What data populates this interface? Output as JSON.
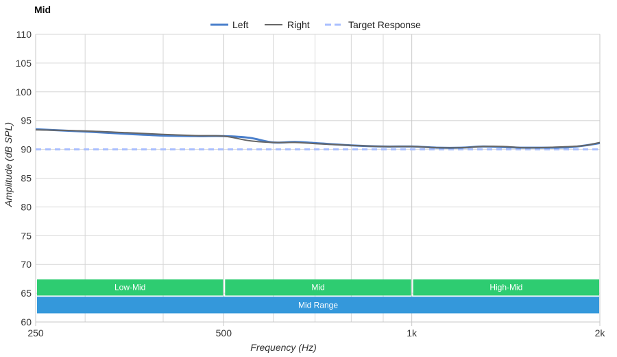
{
  "chart_data": {
    "type": "line",
    "title": "Mid",
    "xlabel": "Frequency (Hz)",
    "ylabel": "Amplitude (dB SPL)",
    "x_scale": "log",
    "xlim": [
      250,
      2000
    ],
    "ylim": [
      60,
      110
    ],
    "grid": true,
    "legend_position": "top-center",
    "x_ticks": [
      {
        "value": 250,
        "label": "250"
      },
      {
        "value": 500,
        "label": "500"
      },
      {
        "value": 1000,
        "label": "1k"
      },
      {
        "value": 2000,
        "label": "2k"
      }
    ],
    "x_minor_gridlines": [
      300,
      400,
      600,
      700,
      800,
      900
    ],
    "y_ticks": [
      60,
      65,
      70,
      75,
      80,
      85,
      90,
      95,
      100,
      105,
      110
    ],
    "series": [
      {
        "name": "Left",
        "color": "#4a7fcb",
        "style": "solid",
        "x": [
          250,
          300,
          350,
          400,
          450,
          500,
          550,
          600,
          650,
          700,
          800,
          900,
          1000,
          1100,
          1200,
          1300,
          1400,
          1500,
          1600,
          1700,
          1800,
          1900,
          2000
        ],
        "y": [
          93.5,
          93.1,
          92.7,
          92.4,
          92.3,
          92.3,
          92.0,
          91.2,
          91.3,
          91.1,
          90.7,
          90.5,
          90.5,
          90.3,
          90.3,
          90.5,
          90.4,
          90.3,
          90.3,
          90.3,
          90.4,
          90.7,
          91.1
        ]
      },
      {
        "name": "Right",
        "color": "#666666",
        "style": "solid",
        "x": [
          250,
          300,
          350,
          400,
          450,
          500,
          550,
          600,
          650,
          700,
          800,
          900,
          1000,
          1100,
          1200,
          1300,
          1400,
          1500,
          1600,
          1700,
          1800,
          1900,
          2000
        ],
        "y": [
          93.4,
          93.2,
          92.9,
          92.6,
          92.4,
          92.3,
          91.5,
          91.2,
          91.2,
          91.0,
          90.7,
          90.5,
          90.5,
          90.3,
          90.3,
          90.5,
          90.5,
          90.3,
          90.3,
          90.4,
          90.5,
          90.7,
          91.2
        ]
      },
      {
        "name": "Target Response",
        "color": "#aabfff",
        "style": "dashed",
        "x": [
          250,
          2000
        ],
        "y": [
          90,
          90
        ]
      }
    ],
    "bands": [
      {
        "label": "Low-Mid",
        "from": 250,
        "to": 500,
        "ymin": 64.6,
        "ymax": 67.4,
        "color": "#2ecc71"
      },
      {
        "label": "Mid",
        "from": 500,
        "to": 1000,
        "ymin": 64.6,
        "ymax": 67.4,
        "color": "#2ecc71"
      },
      {
        "label": "High-Mid",
        "from": 1000,
        "to": 2000,
        "ymin": 64.6,
        "ymax": 67.4,
        "color": "#2ecc71"
      },
      {
        "label": "Mid Range",
        "from": 250,
        "to": 2000,
        "ymin": 61.5,
        "ymax": 64.4,
        "color": "#3498db"
      }
    ]
  }
}
